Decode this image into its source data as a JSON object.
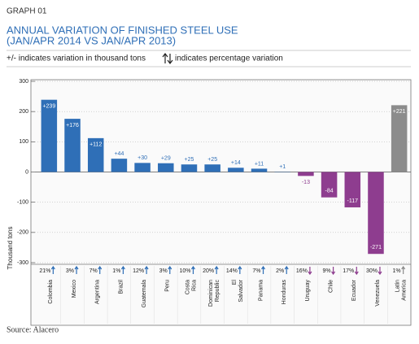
{
  "chart_data": {
    "type": "bar",
    "label": "GRAPH 01",
    "title": "ANNUAL VARIATION OF FINISHED STEEL USE",
    "subtitle": "(JAN/APR 2014 VS JAN/APR 2013)",
    "legend_variation": "+/- indicates variation in thousand tons",
    "legend_percentage": "indicates percentage variation",
    "y_label": "Thousand tons",
    "source": "Source: Alacero",
    "categories": [
      "Colombia",
      "Mexico",
      "Argentina",
      "Brazil",
      "Guatemala",
      "Peru",
      "Costa Rica",
      "Dominican Republic",
      "El Salvador",
      "Panama",
      "Honduras",
      "Uruguay",
      "Chile",
      "Ecuador",
      "Venezuela",
      "Latin America"
    ],
    "values": [
      239,
      176,
      112,
      44,
      30,
      29,
      25,
      25,
      14,
      11,
      1,
      -13,
      -84,
      -117,
      -271,
      221
    ],
    "value_labels": [
      "+239",
      "+176",
      "+112",
      "+44",
      "+30",
      "+29",
      "+25",
      "+25",
      "+14",
      "+11",
      "+1",
      "-13",
      "-84",
      "-117",
      "-271",
      "+221"
    ],
    "percent_labels": [
      "21%",
      "3%",
      "7%",
      "1%",
      "12%",
      "3%",
      "10%",
      "20%",
      "14%",
      "7%",
      "2%",
      "16%",
      "9%",
      "17%",
      "30%",
      "1%"
    ],
    "colors": [
      "#2f6fb7",
      "#2f6fb7",
      "#2f6fb7",
      "#2f6fb7",
      "#2f6fb7",
      "#2f6fb7",
      "#2f6fb7",
      "#2f6fb7",
      "#2f6fb7",
      "#2f6fb7",
      "#2f6fb7",
      "#8e3d8f",
      "#8e3d8f",
      "#8e3d8f",
      "#8e3d8f",
      "#8c8c8c"
    ],
    "ylim": [
      -300,
      300
    ],
    "yticks": [
      -300,
      -200,
      -100,
      0,
      100,
      200,
      300
    ],
    "grid": true
  }
}
